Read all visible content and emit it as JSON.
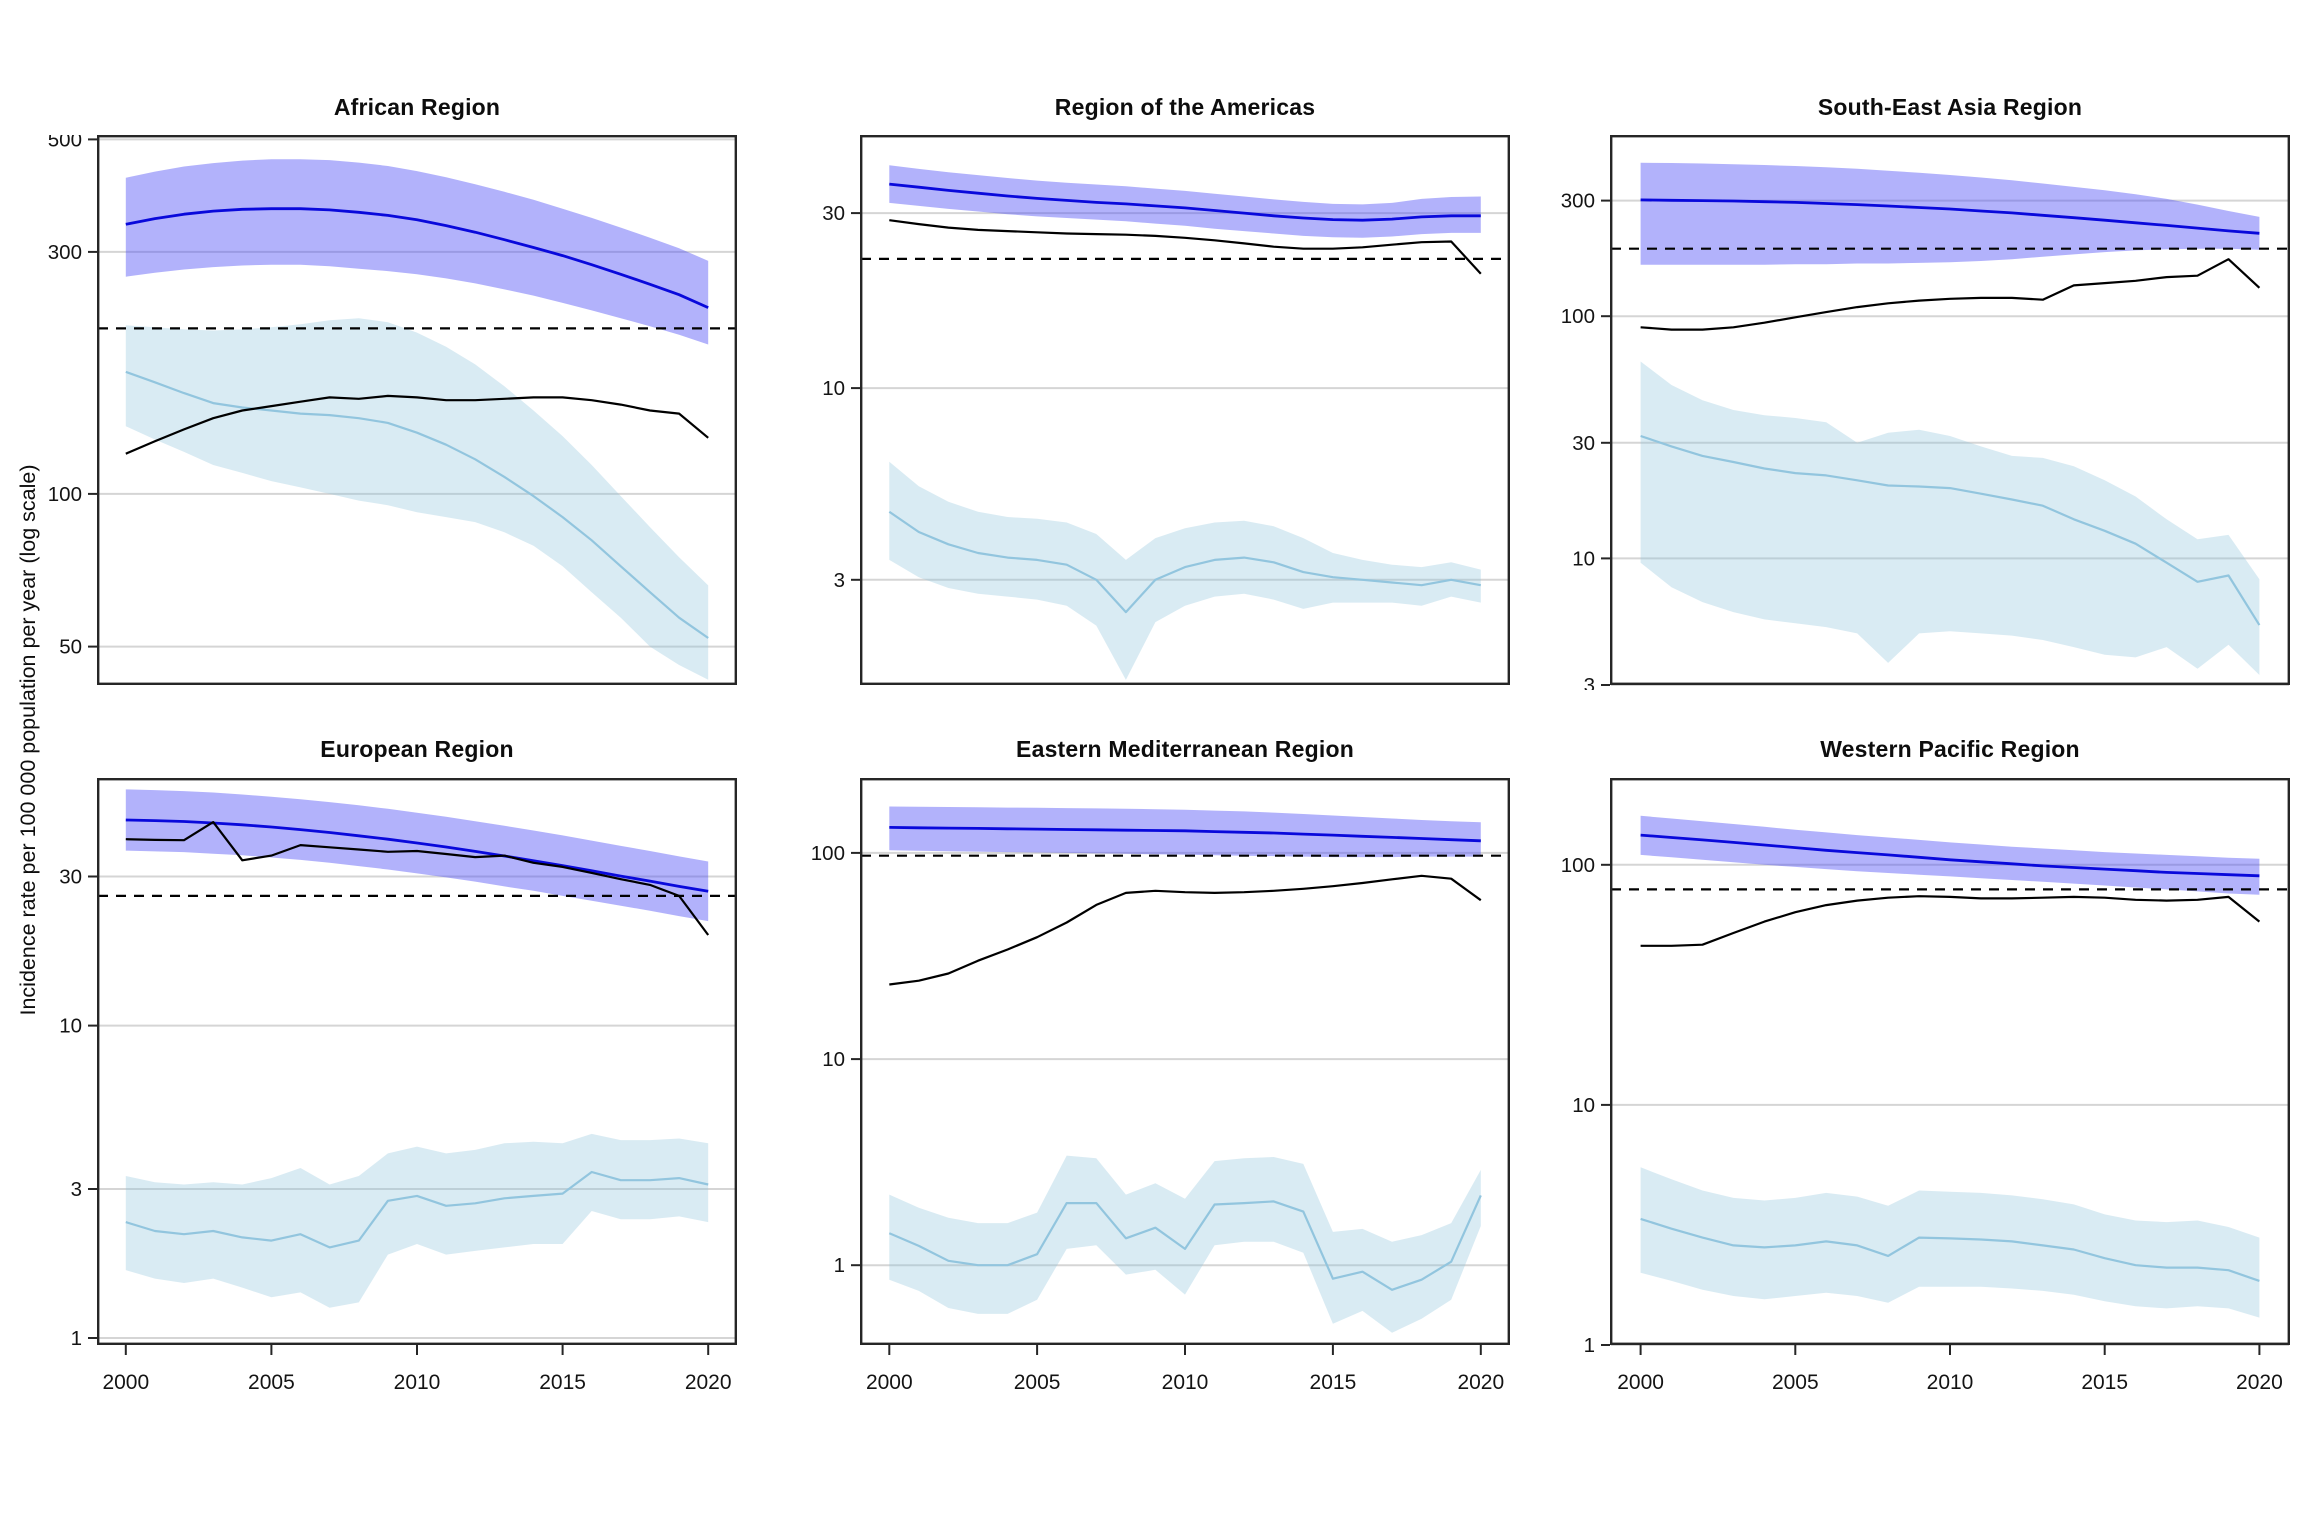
{
  "ylabel": "Incidence rate per 100 000 population per year (log scale)",
  "x_years": [
    2000,
    2001,
    2002,
    2003,
    2004,
    2005,
    2006,
    2007,
    2008,
    2009,
    2010,
    2011,
    2012,
    2013,
    2014,
    2015,
    2016,
    2017,
    2018,
    2019,
    2020
  ],
  "x_tick_labels": [
    "2000",
    "2005",
    "2010",
    "2015",
    "2020"
  ],
  "colors": {
    "blue_line": "#0909db",
    "blue_band": "rgba(80,80,245,0.44)",
    "black_line": "#000000",
    "light_blue_line": "#92c5de",
    "light_blue_band": "rgba(146,197,222,0.35)",
    "reference_line": "#000000",
    "gridline": "#d5d5d5",
    "panel_border": "#262626",
    "tick_text": "#141414"
  },
  "chart_data": [
    {
      "title": "African Region",
      "type": "line",
      "ylim": [
        42,
        510
      ],
      "yticks": [
        50,
        100,
        300,
        500
      ],
      "reference_value": 212,
      "series": {
        "blue": {
          "values": [
            340,
            349,
            356,
            361,
            364,
            365,
            365,
            363,
            359,
            354,
            347,
            338,
            328,
            317,
            306,
            295,
            283,
            271,
            259,
            247,
            233
          ],
          "hi": [
            420,
            432,
            442,
            449,
            454,
            457,
            457,
            455,
            450,
            443,
            433,
            421,
            408,
            394,
            380,
            365,
            350,
            335,
            320,
            305,
            288
          ],
          "lo": [
            268,
            273,
            277,
            280,
            282,
            283,
            283,
            281,
            278,
            275,
            271,
            266,
            260,
            253,
            246,
            238,
            230,
            222,
            214,
            206,
            197
          ]
        },
        "black": {
          "values": [
            120,
            127,
            134,
            141,
            146,
            149,
            152,
            155,
            154,
            156,
            155,
            153,
            153,
            154,
            155,
            155,
            153,
            150,
            146,
            144,
            129
          ]
        },
        "light_blue": {
          "values": [
            174,
            166,
            158,
            151,
            148,
            146,
            144,
            143,
            141,
            138,
            132,
            125,
            117,
            108,
            99,
            90,
            81,
            72,
            64,
            57,
            52
          ],
          "hi": [
            215,
            213,
            211,
            210,
            211,
            213,
            216,
            220,
            222,
            218,
            208,
            195,
            180,
            163,
            146,
            130,
            114,
            99,
            86,
            75,
            66
          ],
          "lo": [
            136,
            128,
            121,
            114,
            110,
            106,
            103,
            100,
            97,
            95,
            92,
            90,
            88,
            84,
            79,
            72,
            64,
            57,
            50,
            46,
            43
          ]
        }
      }
    },
    {
      "title": "Region of the Americas",
      "type": "line",
      "ylim": [
        1.55,
        49
      ],
      "yticks": [
        3,
        10,
        30
      ],
      "reference_value": 22.5,
      "series": {
        "blue": {
          "values": [
            36,
            35.3,
            34.6,
            34,
            33.4,
            32.9,
            32.5,
            32.1,
            31.8,
            31.4,
            31,
            30.5,
            30,
            29.5,
            29.1,
            28.8,
            28.7,
            28.9,
            29.3,
            29.5,
            29.5
          ],
          "hi": [
            40.5,
            39.6,
            38.8,
            38.1,
            37.4,
            36.8,
            36.3,
            35.9,
            35.5,
            35,
            34.5,
            33.9,
            33.3,
            32.7,
            32.2,
            31.8,
            31.7,
            32,
            32.8,
            33.2,
            33.3
          ],
          "lo": [
            32,
            31.4,
            30.8,
            30.3,
            29.8,
            29.4,
            29.1,
            28.8,
            28.5,
            28.1,
            27.7,
            27.2,
            26.8,
            26.4,
            26,
            25.8,
            25.7,
            25.9,
            26.3,
            26.5,
            26.5
          ]
        },
        "black": {
          "values": [
            28.7,
            28,
            27.4,
            27,
            26.8,
            26.6,
            26.4,
            26.3,
            26.2,
            26,
            25.7,
            25.3,
            24.8,
            24.3,
            24,
            24,
            24.2,
            24.6,
            25,
            25.1,
            20.5
          ]
        },
        "light_blue": {
          "values": [
            4.6,
            4.05,
            3.75,
            3.55,
            3.45,
            3.4,
            3.3,
            3,
            2.45,
            3,
            3.25,
            3.4,
            3.45,
            3.35,
            3.15,
            3.05,
            3,
            2.95,
            2.9,
            3,
            2.9
          ],
          "hi": [
            6.3,
            5.4,
            4.9,
            4.6,
            4.45,
            4.4,
            4.3,
            4,
            3.4,
            3.9,
            4.15,
            4.3,
            4.35,
            4.2,
            3.9,
            3.55,
            3.4,
            3.3,
            3.25,
            3.35,
            3.2
          ],
          "lo": [
            3.4,
            3.05,
            2.85,
            2.75,
            2.7,
            2.65,
            2.55,
            2.25,
            1.6,
            2.3,
            2.55,
            2.7,
            2.75,
            2.65,
            2.5,
            2.6,
            2.6,
            2.6,
            2.55,
            2.7,
            2.6
          ]
        }
      }
    },
    {
      "title": "South-East Asia Region",
      "type": "line",
      "ylim": [
        3,
        560
      ],
      "yticks": [
        3,
        10,
        30,
        100,
        300
      ],
      "reference_value": 190,
      "series": {
        "blue": {
          "values": [
            302,
            301,
            300,
            299,
            297,
            295,
            292,
            289,
            285,
            281,
            277,
            272,
            267,
            261,
            255,
            249,
            243,
            237,
            231,
            225,
            220
          ],
          "hi": [
            430,
            429,
            427,
            424,
            421,
            417,
            412,
            406,
            399,
            391,
            383,
            374,
            364,
            353,
            342,
            331,
            319,
            305,
            289,
            272,
            257
          ],
          "lo": [
            163,
            163,
            163,
            163,
            163,
            164,
            164,
            165,
            165,
            166,
            167,
            169,
            172,
            176,
            180,
            184,
            187,
            189,
            190,
            190,
            188
          ]
        },
        "black": {
          "values": [
            90,
            88,
            88,
            90,
            94,
            99,
            104,
            109,
            113,
            116,
            118,
            119,
            119,
            117,
            134,
            137,
            140,
            145,
            147,
            172,
            131
          ]
        },
        "light_blue": {
          "values": [
            32,
            29,
            26.5,
            25,
            23.5,
            22.5,
            22,
            21,
            20,
            19.8,
            19.5,
            18.5,
            17.5,
            16.5,
            14.5,
            13,
            11.5,
            9.6,
            8,
            8.5,
            5.3
          ],
          "hi": [
            65,
            52,
            45,
            41,
            39,
            38,
            36.5,
            30,
            33,
            34,
            32,
            29,
            26.5,
            26,
            24,
            21,
            18,
            14.5,
            12,
            12.5,
            8.2
          ],
          "lo": [
            9.6,
            7.6,
            6.6,
            6,
            5.6,
            5.4,
            5.2,
            4.9,
            3.7,
            4.9,
            5,
            4.9,
            4.8,
            4.6,
            4.3,
            4,
            3.9,
            4.3,
            3.5,
            4.4,
            3.3
          ]
        }
      }
    },
    {
      "title": "European Region",
      "type": "line",
      "ylim": [
        0.95,
        62
      ],
      "yticks": [
        1,
        3,
        10,
        30
      ],
      "reference_value": 26,
      "series": {
        "blue": {
          "values": [
            45.5,
            45.3,
            45,
            44.5,
            43.9,
            43.2,
            42.4,
            41.5,
            40.5,
            39.5,
            38.4,
            37.3,
            36.1,
            34.9,
            33.7,
            32.5,
            31.3,
            30.1,
            29,
            27.9,
            26.9
          ],
          "hi": [
            57,
            56.7,
            56.3,
            55.7,
            54.9,
            54,
            53,
            51.9,
            50.7,
            49.4,
            48,
            46.6,
            45.1,
            43.6,
            42.1,
            40.6,
            39.1,
            37.6,
            36.2,
            34.8,
            33.5
          ],
          "lo": [
            36.3,
            36.1,
            35.9,
            35.5,
            35.1,
            34.5,
            33.9,
            33.2,
            32.4,
            31.6,
            30.7,
            29.8,
            28.9,
            27.9,
            27,
            26,
            25.1,
            24.2,
            23.3,
            22.4,
            21.6
          ]
        },
        "black": {
          "values": [
            39.5,
            39.3,
            39.2,
            44.8,
            33.8,
            35,
            37.8,
            37.2,
            36.6,
            36,
            36.2,
            35.4,
            34.6,
            35,
            33.2,
            32.2,
            30.8,
            29.4,
            28.2,
            26,
            19.5
          ]
        },
        "light_blue": {
          "values": [
            2.35,
            2.2,
            2.15,
            2.2,
            2.1,
            2.05,
            2.15,
            1.95,
            2.05,
            2.75,
            2.85,
            2.65,
            2.7,
            2.8,
            2.85,
            2.9,
            3.4,
            3.2,
            3.2,
            3.25,
            3.1
          ],
          "hi": [
            3.3,
            3.15,
            3.1,
            3.15,
            3.1,
            3.25,
            3.5,
            3.1,
            3.3,
            3.9,
            4.1,
            3.9,
            4,
            4.2,
            4.25,
            4.2,
            4.5,
            4.3,
            4.3,
            4.35,
            4.2
          ],
          "lo": [
            1.65,
            1.55,
            1.5,
            1.55,
            1.45,
            1.35,
            1.4,
            1.25,
            1.3,
            1.85,
            2,
            1.85,
            1.9,
            1.95,
            2,
            2,
            2.55,
            2.4,
            2.4,
            2.45,
            2.35
          ]
        }
      }
    },
    {
      "title": "Eastern Mediterranean Region",
      "type": "line",
      "ylim": [
        0.41,
        231
      ],
      "yticks": [
        1,
        10,
        100
      ],
      "reference_value": 97,
      "series": {
        "blue": {
          "values": [
            133,
            132.5,
            132,
            131.5,
            131,
            130.5,
            130,
            129.5,
            129,
            128.5,
            128,
            127,
            126,
            125,
            123.5,
            122,
            120.5,
            119,
            117.5,
            116,
            114.5
          ],
          "hi": [
            168,
            167.5,
            167,
            166.5,
            166,
            165.5,
            165,
            164.5,
            164,
            163,
            162,
            160.5,
            159,
            157,
            154.5,
            152,
            149.5,
            147,
            144.5,
            142.5,
            141
          ],
          "lo": [
            103,
            102.5,
            102,
            101.5,
            101,
            100.5,
            100,
            99.5,
            99,
            98.5,
            98,
            97.5,
            97,
            96.5,
            96,
            95.5,
            95.5,
            95.5,
            96,
            96,
            96
          ]
        },
        "black": {
          "values": [
            23,
            24,
            26,
            30,
            34,
            39,
            46,
            56,
            64,
            65.5,
            64.5,
            64,
            64.5,
            65.5,
            67,
            69,
            71.5,
            74.5,
            77.5,
            75,
            59
          ]
        },
        "light_blue": {
          "values": [
            1.43,
            1.24,
            1.05,
            1,
            1,
            1.13,
            2,
            2,
            1.35,
            1.52,
            1.2,
            1.97,
            2,
            2.04,
            1.82,
            0.86,
            0.93,
            0.76,
            0.85,
            1.04,
            2.18
          ],
          "hi": [
            2.2,
            1.9,
            1.7,
            1.6,
            1.6,
            1.8,
            3.4,
            3.3,
            2.2,
            2.5,
            2.1,
            3.2,
            3.3,
            3.35,
            3.1,
            1.45,
            1.5,
            1.3,
            1.4,
            1.6,
            2.9
          ],
          "lo": [
            0.85,
            0.75,
            0.62,
            0.58,
            0.58,
            0.68,
            1.2,
            1.25,
            0.9,
            0.95,
            0.72,
            1.25,
            1.3,
            1.3,
            1.15,
            0.52,
            0.6,
            0.47,
            0.55,
            0.68,
            1.55
          ]
        }
      }
    },
    {
      "title": "Western Pacific Region",
      "type": "line",
      "ylim": [
        1.0,
        230
      ],
      "yticks": [
        1,
        10,
        100
      ],
      "reference_value": 79,
      "series": {
        "blue": {
          "values": [
            133,
            130,
            127,
            124,
            121,
            118,
            115,
            112.5,
            110,
            107.5,
            105,
            103,
            101,
            99,
            97.5,
            96,
            94.5,
            93,
            92,
            91,
            90
          ],
          "hi": [
            160,
            156,
            152,
            148,
            144,
            140,
            136.5,
            133,
            130,
            127,
            124,
            121.5,
            119,
            117,
            115,
            113,
            111.5,
            110,
            108.5,
            107,
            106
          ],
          "lo": [
            110,
            107.5,
            105,
            102.5,
            100,
            98,
            96,
            94,
            92.5,
            91,
            89.5,
            88,
            86.5,
            85,
            83.5,
            82,
            80.5,
            79,
            77.5,
            76,
            75
          ]
        },
        "black": {
          "values": [
            46,
            46,
            46.5,
            52,
            58,
            63.5,
            68,
            71,
            73,
            74,
            73.5,
            72.5,
            72.5,
            73,
            73.5,
            73,
            71.5,
            71,
            71.5,
            73.5,
            58
          ]
        },
        "light_blue": {
          "values": [
            3.35,
            3.05,
            2.8,
            2.6,
            2.55,
            2.6,
            2.7,
            2.6,
            2.35,
            2.8,
            2.78,
            2.75,
            2.7,
            2.6,
            2.5,
            2.3,
            2.15,
            2.1,
            2.1,
            2.05,
            1.85
          ],
          "hi": [
            5.5,
            4.9,
            4.4,
            4.1,
            4,
            4.1,
            4.3,
            4.15,
            3.8,
            4.4,
            4.35,
            4.3,
            4.2,
            4.05,
            3.85,
            3.5,
            3.3,
            3.25,
            3.3,
            3.1,
            2.8
          ],
          "lo": [
            2,
            1.85,
            1.7,
            1.6,
            1.55,
            1.6,
            1.65,
            1.6,
            1.5,
            1.75,
            1.75,
            1.75,
            1.72,
            1.68,
            1.62,
            1.52,
            1.45,
            1.42,
            1.45,
            1.42,
            1.3
          ]
        }
      }
    }
  ]
}
